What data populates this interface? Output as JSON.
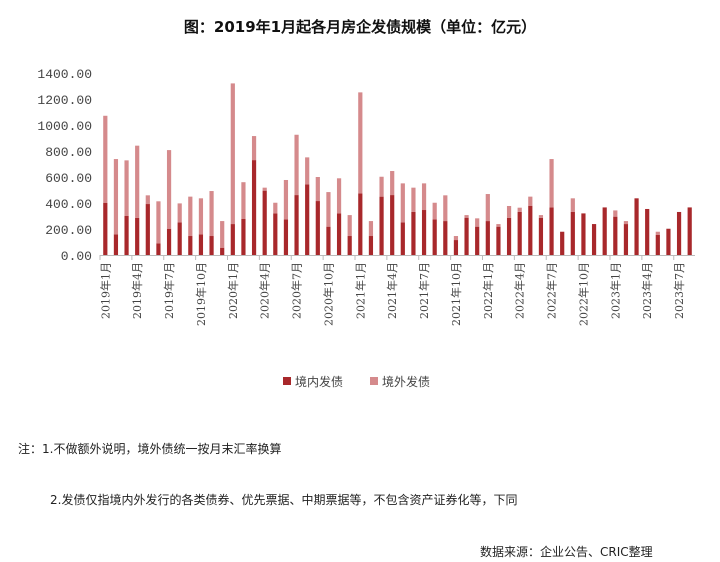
{
  "chart_data": {
    "type": "bar",
    "stacked": true,
    "title": "图：2019年1月起各月房企发债规模（单位：亿元）",
    "xlabel": "",
    "ylabel": "",
    "ylim": [
      0,
      1400
    ],
    "yticks": [
      "0.00",
      "200.00",
      "400.00",
      "600.00",
      "800.00",
      "1000.00",
      "1200.00",
      "1400.00"
    ],
    "grid": false,
    "legend_position": "bottom",
    "categories": [
      "2019年1月",
      "2019年2月",
      "2019年3月",
      "2019年4月",
      "2019年5月",
      "2019年6月",
      "2019年7月",
      "2019年8月",
      "2019年9月",
      "2019年10月",
      "2019年11月",
      "2019年12月",
      "2020年1月",
      "2020年2月",
      "2020年3月",
      "2020年4月",
      "2020年5月",
      "2020年6月",
      "2020年7月",
      "2020年8月",
      "2020年9月",
      "2020年10月",
      "2020年11月",
      "2020年12月",
      "2021年1月",
      "2021年2月",
      "2021年3月",
      "2021年4月",
      "2021年5月",
      "2021年6月",
      "2021年7月",
      "2021年8月",
      "2021年9月",
      "2021年10月",
      "2021年11月",
      "2021年12月",
      "2022年1月",
      "2022年2月",
      "2022年3月",
      "2022年4月",
      "2022年5月",
      "2022年6月",
      "2022年7月",
      "2022年8月",
      "2022年9月",
      "2022年10月",
      "2022年11月",
      "2022年12月",
      "2023年1月",
      "2023年2月",
      "2023年3月",
      "2023年4月",
      "2023年5月",
      "2023年6月",
      "2023年7月",
      "2023年8月"
    ],
    "xticks": [
      "2019年1月",
      "2019年4月",
      "2019年7月",
      "2019年10月",
      "2020年1月",
      "2020年4月",
      "2020年7月",
      "2020年10月",
      "2021年1月",
      "2021年4月",
      "2021年7月",
      "2021年10月",
      "2022年1月",
      "2022年4月",
      "2022年7月",
      "2022年10月",
      "2023年1月",
      "2023年4月",
      "2023年7月"
    ],
    "series": [
      {
        "name": "境内发债",
        "color": "#a8282b",
        "values": [
          402,
          159,
          300,
          285,
          392,
          90,
          202,
          251,
          146,
          159,
          146,
          56,
          238,
          277,
          730,
          495,
          320,
          274,
          461,
          543,
          415,
          218,
          320,
          146,
          474,
          146,
          449,
          461,
          251,
          331,
          346,
          274,
          261,
          115,
          287,
          218,
          261,
          218,
          285,
          331,
          379,
          285,
          366,
          179,
          331,
          320,
          238,
          366,
          295,
          238,
          436,
          354,
          154,
          202,
          331,
          366
        ]
      },
      {
        "name": "境外发债",
        "color": "#d58a8c",
        "values": [
          669,
          579,
          428,
          556,
          67,
          323,
          605,
          146,
          303,
          277,
          346,
          205,
          1082,
          283,
          185,
          23,
          82,
          303,
          464,
          208,
          185,
          266,
          270,
          161,
          777,
          115,
          153,
          185,
          300,
          187,
          205,
          128,
          198,
          31,
          20,
          64,
          208,
          20,
          92,
          33,
          70,
          22,
          372,
          0,
          105,
          0,
          0,
          0,
          48,
          23,
          0,
          0,
          25,
          0,
          0,
          0
        ]
      }
    ]
  },
  "notes": {
    "note1": "注：1.不做额外说明，境外债统一按月末汇率换算",
    "note2": "2.发债仅指境内外发行的各类债券、优先票据、中期票据等，不包含资产证券化等，下同",
    "source": "数据来源：企业公告、CRIC整理"
  }
}
